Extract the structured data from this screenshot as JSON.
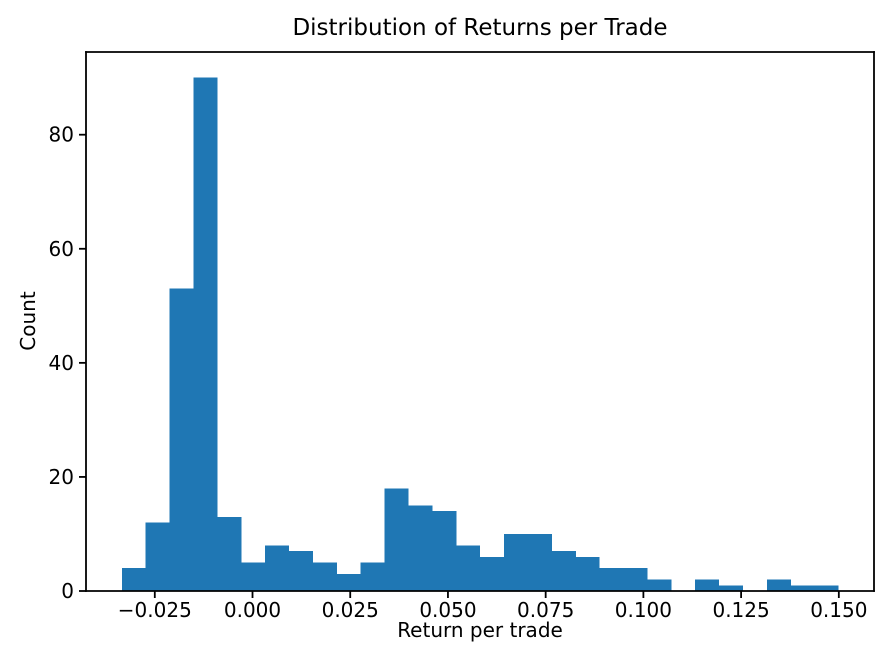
{
  "figure": {
    "background_color": "#ffffff",
    "bar_color": "#1f77b4",
    "axis_color": "#000000",
    "text_color": "#000000"
  },
  "chart_data": {
    "type": "bar",
    "subtype": "histogram",
    "title": "Distribution of Returns per Trade",
    "xlabel": "Return per trade",
    "ylabel": "Count",
    "grid": false,
    "legend_position": "none",
    "bin_start": -0.03343,
    "bin_width": 0.006112,
    "counts": [
      4,
      12,
      53,
      90,
      13,
      5,
      8,
      7,
      5,
      3,
      5,
      18,
      15,
      14,
      8,
      6,
      10,
      10,
      7,
      6,
      4,
      4,
      2,
      0,
      2,
      1,
      0,
      2,
      1,
      1
    ],
    "total_count": 316,
    "xlim": [
      -0.0426,
      0.159
    ],
    "ylim": [
      0,
      94.5
    ],
    "x_ticks": [
      -0.025,
      0.0,
      0.025,
      0.05,
      0.075,
      0.1,
      0.125,
      0.15
    ],
    "x_tick_labels": [
      "−0.025",
      "0.000",
      "0.025",
      "0.050",
      "0.075",
      "0.100",
      "0.125",
      "0.150"
    ],
    "y_ticks": [
      0,
      20,
      40,
      60,
      80
    ],
    "y_tick_labels": [
      "0",
      "20",
      "40",
      "60",
      "80"
    ]
  }
}
